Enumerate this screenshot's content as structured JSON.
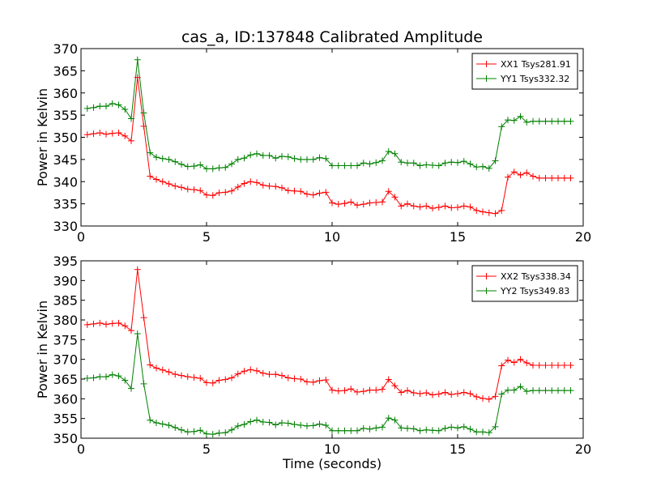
{
  "figure": {
    "title": "cas_a, ID:137848 Calibrated Amplitude",
    "xlabel": "Time (seconds)"
  },
  "colors": {
    "red": "#ff0000",
    "green": "#008000"
  },
  "chart_data": [
    {
      "type": "line",
      "title": "cas_a, ID:137848 Calibrated Amplitude",
      "xlabel": "",
      "ylabel": "Power in Kelvin",
      "xlim": [
        0,
        20
      ],
      "ylim": [
        330,
        370
      ],
      "xticks": [
        "0",
        "5",
        "10",
        "15",
        "20"
      ],
      "yticks": [
        "330",
        "335",
        "340",
        "345",
        "350",
        "355",
        "360",
        "365",
        "370"
      ],
      "grid": false,
      "legend_position": "top-right",
      "x": [
        0.25,
        0.5,
        0.75,
        1.0,
        1.25,
        1.5,
        1.75,
        2.0,
        2.25,
        2.5,
        2.75,
        3.0,
        3.25,
        3.5,
        3.75,
        4.0,
        4.25,
        4.5,
        4.75,
        5.0,
        5.25,
        5.5,
        5.75,
        6.0,
        6.25,
        6.5,
        6.75,
        7.0,
        7.25,
        7.5,
        7.75,
        8.0,
        8.25,
        8.5,
        8.75,
        9.0,
        9.25,
        9.5,
        9.75,
        10.0,
        10.25,
        10.5,
        10.75,
        11.0,
        11.25,
        11.5,
        11.75,
        12.0,
        12.25,
        12.5,
        12.75,
        13.0,
        13.25,
        13.5,
        13.75,
        14.0,
        14.25,
        14.5,
        14.75,
        15.0,
        15.25,
        15.5,
        15.75,
        16.0,
        16.25,
        16.5,
        16.75,
        17.0,
        17.25,
        17.5,
        17.75,
        18.0,
        18.25,
        18.5,
        18.75,
        19.0,
        19.25,
        19.5
      ],
      "series": [
        {
          "name": "XX1 Tsys281.91",
          "color": "#ff0000",
          "values": [
            350.6,
            350.8,
            351.0,
            350.7,
            350.9,
            351.0,
            350.3,
            349.2,
            363.5,
            352.5,
            341.2,
            340.5,
            340.0,
            339.5,
            339.0,
            338.7,
            338.3,
            338.2,
            338.0,
            337.0,
            336.9,
            337.5,
            337.6,
            337.9,
            338.8,
            339.6,
            340.0,
            339.8,
            339.2,
            339.0,
            338.9,
            338.6,
            338.0,
            337.9,
            337.8,
            337.2,
            337.0,
            337.4,
            337.6,
            335.2,
            334.9,
            335.1,
            335.4,
            334.7,
            334.9,
            335.2,
            335.3,
            335.4,
            337.8,
            336.5,
            334.5,
            335.0,
            334.5,
            334.3,
            334.5,
            334.0,
            334.2,
            334.5,
            334.1,
            334.2,
            334.5,
            334.3,
            333.5,
            333.2,
            333.0,
            332.8,
            333.5,
            341.0,
            342.2,
            341.5,
            342.0,
            341.2,
            340.8,
            340.8,
            340.8,
            340.8,
            340.8,
            340.8
          ],
          "note": ""
        },
        {
          "name": "YY1 Tsys332.32",
          "color": "#008000",
          "values": [
            356.5,
            356.7,
            357.0,
            357.0,
            357.6,
            357.3,
            356.3,
            354.2,
            367.5,
            355.5,
            346.5,
            345.5,
            345.2,
            345.0,
            344.5,
            343.9,
            343.4,
            343.5,
            343.8,
            342.9,
            342.9,
            343.1,
            343.2,
            344.0,
            345.0,
            345.3,
            346.0,
            346.3,
            345.9,
            345.9,
            345.3,
            345.7,
            345.6,
            345.2,
            345.0,
            345.0,
            345.0,
            345.4,
            345.2,
            343.6,
            343.6,
            343.6,
            343.6,
            343.6,
            344.2,
            344.0,
            344.3,
            344.7,
            346.8,
            346.3,
            344.4,
            344.2,
            344.2,
            343.6,
            343.8,
            343.7,
            343.6,
            344.2,
            344.4,
            344.3,
            344.6,
            344.0,
            343.3,
            343.4,
            343.0,
            344.7,
            352.4,
            353.9,
            353.8,
            354.7,
            353.4,
            353.6,
            353.6,
            353.6,
            353.6,
            353.6,
            353.6,
            353.6
          ],
          "note": ""
        }
      ]
    },
    {
      "type": "line",
      "title": "",
      "xlabel": "Time (seconds)",
      "ylabel": "Power in Kelvin",
      "xlim": [
        0,
        20
      ],
      "ylim": [
        350,
        395
      ],
      "xticks": [
        "0",
        "5",
        "10",
        "15",
        "20"
      ],
      "yticks": [
        "350",
        "355",
        "360",
        "365",
        "370",
        "375",
        "380",
        "385",
        "390",
        "395"
      ],
      "grid": false,
      "legend_position": "top-right",
      "x": [
        0.25,
        0.5,
        0.75,
        1.0,
        1.25,
        1.5,
        1.75,
        2.0,
        2.25,
        2.5,
        2.75,
        3.0,
        3.25,
        3.5,
        3.75,
        4.0,
        4.25,
        4.5,
        4.75,
        5.0,
        5.25,
        5.5,
        5.75,
        6.0,
        6.25,
        6.5,
        6.75,
        7.0,
        7.25,
        7.5,
        7.75,
        8.0,
        8.25,
        8.5,
        8.75,
        9.0,
        9.25,
        9.5,
        9.75,
        10.0,
        10.25,
        10.5,
        10.75,
        11.0,
        11.25,
        11.5,
        11.75,
        12.0,
        12.25,
        12.5,
        12.75,
        13.0,
        13.25,
        13.5,
        13.75,
        14.0,
        14.25,
        14.5,
        14.75,
        15.0,
        15.25,
        15.5,
        15.75,
        16.0,
        16.25,
        16.5,
        16.75,
        17.0,
        17.25,
        17.5,
        17.75,
        18.0,
        18.25,
        18.5,
        18.75,
        19.0,
        19.25,
        19.5
      ],
      "series": [
        {
          "name": "XX2 Tsys338.34",
          "color": "#ff0000",
          "values": [
            378.8,
            379.0,
            379.2,
            378.9,
            379.1,
            379.2,
            378.5,
            377.3,
            392.8,
            380.6,
            368.6,
            367.8,
            367.3,
            366.8,
            366.2,
            365.9,
            365.6,
            365.4,
            365.2,
            364.1,
            364.0,
            364.7,
            364.9,
            365.3,
            366.3,
            367.0,
            367.4,
            367.1,
            366.5,
            366.2,
            366.2,
            365.9,
            365.3,
            365.1,
            365.0,
            364.3,
            364.2,
            364.6,
            364.8,
            362.2,
            362.0,
            362.1,
            362.5,
            361.7,
            361.9,
            362.2,
            362.2,
            362.4,
            364.9,
            363.3,
            361.6,
            362.1,
            361.5,
            361.3,
            361.5,
            361.0,
            361.2,
            361.6,
            361.1,
            361.3,
            361.6,
            361.3,
            360.5,
            360.1,
            359.9,
            360.6,
            368.4,
            369.8,
            369.2,
            370.0,
            369.1,
            368.5,
            368.5,
            368.5,
            368.5,
            368.5,
            368.5,
            368.5
          ],
          "note": ""
        },
        {
          "name": "YY2 Tsys349.83",
          "color": "#008000",
          "values": [
            365.2,
            365.3,
            365.6,
            365.6,
            366.1,
            365.8,
            364.7,
            362.6,
            376.5,
            363.8,
            354.6,
            353.9,
            353.6,
            353.3,
            352.7,
            352.1,
            351.6,
            351.7,
            352.0,
            351.1,
            351.0,
            351.3,
            351.4,
            352.1,
            353.1,
            353.5,
            354.2,
            354.6,
            354.1,
            354.0,
            353.4,
            353.9,
            353.8,
            353.5,
            353.3,
            353.1,
            353.2,
            353.6,
            353.3,
            351.9,
            351.9,
            351.9,
            351.9,
            351.9,
            352.5,
            352.3,
            352.6,
            352.8,
            355.1,
            354.6,
            352.6,
            352.5,
            352.4,
            351.9,
            352.1,
            352.0,
            351.9,
            352.5,
            352.8,
            352.6,
            352.9,
            352.3,
            351.6,
            351.6,
            351.4,
            352.9,
            361.2,
            362.2,
            362.2,
            363.1,
            361.9,
            362.1,
            362.1,
            362.1,
            362.1,
            362.1,
            362.1,
            362.1
          ],
          "note": ""
        }
      ]
    }
  ]
}
